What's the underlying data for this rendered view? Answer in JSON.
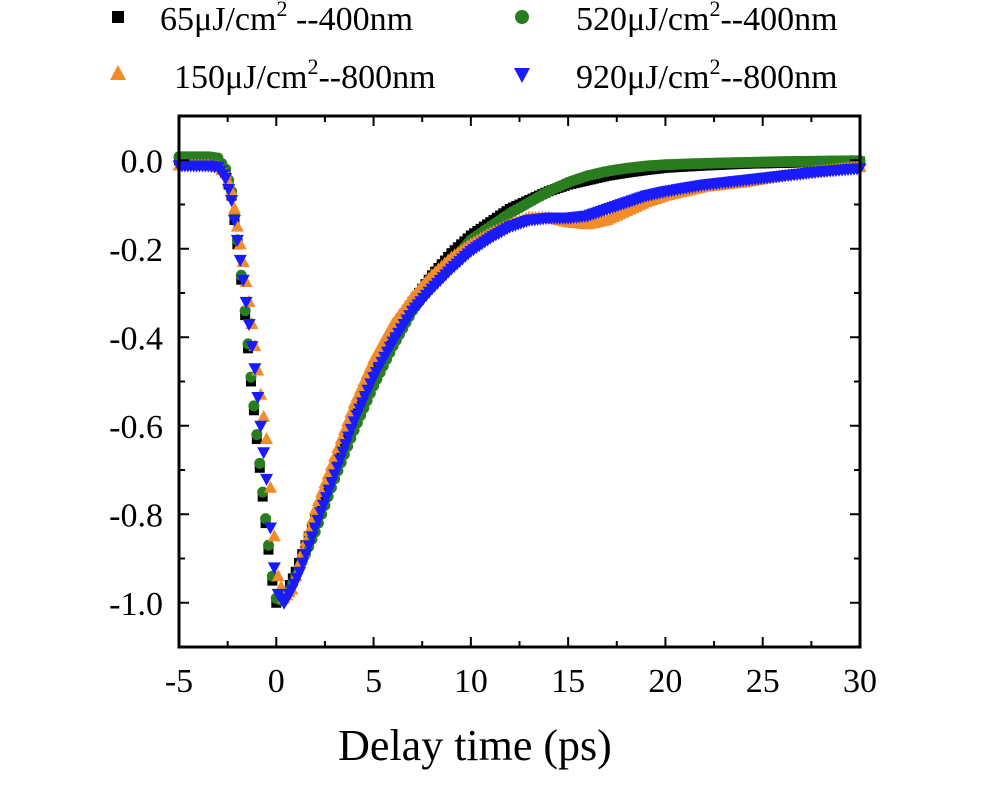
{
  "chart_data": {
    "type": "scatter",
    "xlabel": "Delay time (ps)",
    "ylabel": "",
    "xlim": [
      -5,
      30
    ],
    "ylim": [
      -1.1,
      0.1
    ],
    "xticks": [
      "-5",
      "0",
      "5",
      "10",
      "15",
      "20",
      "25",
      "30"
    ],
    "yticks": [
      "0.0",
      "-0.2",
      "-0.4",
      "-0.6",
      "-0.8",
      "-1.0"
    ],
    "grid": false,
    "legend_position": "top, outside plot, two columns",
    "series": [
      {
        "name": "65μJ/cm2 --400nm",
        "marker": "square",
        "color": "#000000",
        "points": [
          [
            -5,
            0.0
          ],
          [
            -3.5,
            0.0
          ],
          [
            -3,
            -0.005
          ],
          [
            -2.6,
            -0.03
          ],
          [
            -2.3,
            -0.08
          ],
          [
            -2,
            -0.19
          ],
          [
            -1.6,
            -0.35
          ],
          [
            -1.3,
            -0.5
          ],
          [
            -1,
            -0.63
          ],
          [
            -0.7,
            -0.76
          ],
          [
            -0.4,
            -0.88
          ],
          [
            -0.2,
            -0.95
          ],
          [
            0,
            -1.0
          ],
          [
            0.3,
            -0.99
          ],
          [
            0.7,
            -0.96
          ],
          [
            1,
            -0.93
          ],
          [
            2,
            -0.81
          ],
          [
            3,
            -0.69
          ],
          [
            4,
            -0.58
          ],
          [
            5,
            -0.48
          ],
          [
            6,
            -0.39
          ],
          [
            7,
            -0.32
          ],
          [
            8,
            -0.26
          ],
          [
            9,
            -0.21
          ],
          [
            10,
            -0.17
          ],
          [
            11,
            -0.14
          ],
          [
            12,
            -0.11
          ],
          [
            13,
            -0.09
          ],
          [
            14,
            -0.07
          ],
          [
            15,
            -0.055
          ],
          [
            16,
            -0.045
          ],
          [
            17,
            -0.035
          ],
          [
            18,
            -0.028
          ],
          [
            19,
            -0.022
          ],
          [
            20,
            -0.017
          ],
          [
            22,
            -0.012
          ],
          [
            24,
            -0.008
          ],
          [
            26,
            -0.006
          ],
          [
            28,
            -0.004
          ],
          [
            30,
            -0.003
          ]
        ]
      },
      {
        "name": "520μJ/cm2--400nm",
        "marker": "circle",
        "color": "#2a7d1f",
        "points": [
          [
            -5,
            0.008
          ],
          [
            -3.5,
            0.008
          ],
          [
            -3,
            0.005
          ],
          [
            -2.6,
            -0.02
          ],
          [
            -2.3,
            -0.07
          ],
          [
            -2,
            -0.18
          ],
          [
            -1.6,
            -0.34
          ],
          [
            -1.3,
            -0.49
          ],
          [
            -1,
            -0.62
          ],
          [
            -0.7,
            -0.75
          ],
          [
            -0.4,
            -0.87
          ],
          [
            -0.2,
            -0.94
          ],
          [
            0,
            -0.99
          ],
          [
            0.3,
            -0.995
          ],
          [
            0.7,
            -0.97
          ],
          [
            1,
            -0.94
          ],
          [
            2,
            -0.84
          ],
          [
            3,
            -0.72
          ],
          [
            4,
            -0.61
          ],
          [
            5,
            -0.51
          ],
          [
            6,
            -0.42
          ],
          [
            7,
            -0.34
          ],
          [
            8,
            -0.28
          ],
          [
            9,
            -0.23
          ],
          [
            10,
            -0.18
          ],
          [
            11,
            -0.15
          ],
          [
            12,
            -0.12
          ],
          [
            13,
            -0.095
          ],
          [
            14,
            -0.07
          ],
          [
            15,
            -0.05
          ],
          [
            16,
            -0.035
          ],
          [
            17,
            -0.025
          ],
          [
            18,
            -0.018
          ],
          [
            19,
            -0.013
          ],
          [
            20,
            -0.01
          ],
          [
            22,
            -0.007
          ],
          [
            24,
            -0.005
          ],
          [
            26,
            -0.003
          ],
          [
            28,
            -0.002
          ],
          [
            30,
            -0.001
          ]
        ]
      },
      {
        "name": "150μJ/cm2--800nm",
        "marker": "triangle-up",
        "color": "#f28c28",
        "points": [
          [
            -5,
            -0.012
          ],
          [
            -3.5,
            -0.012
          ],
          [
            -3,
            -0.015
          ],
          [
            -2.6,
            -0.03
          ],
          [
            -2.3,
            -0.07
          ],
          [
            -2,
            -0.15
          ],
          [
            -1.7,
            -0.23
          ],
          [
            -1.4,
            -0.32
          ],
          [
            -1.1,
            -0.42
          ],
          [
            -0.8,
            -0.53
          ],
          [
            -0.5,
            -0.63
          ],
          [
            -0.3,
            -0.74
          ],
          [
            -0.1,
            -0.85
          ],
          [
            0.1,
            -0.94
          ],
          [
            0.4,
            -0.99
          ],
          [
            0.8,
            -0.97
          ],
          [
            1.2,
            -0.91
          ],
          [
            2,
            -0.79
          ],
          [
            3,
            -0.67
          ],
          [
            4,
            -0.55
          ],
          [
            5,
            -0.45
          ],
          [
            6,
            -0.37
          ],
          [
            7,
            -0.31
          ],
          [
            8,
            -0.26
          ],
          [
            9,
            -0.22
          ],
          [
            10,
            -0.19
          ],
          [
            11,
            -0.165
          ],
          [
            12,
            -0.145
          ],
          [
            13,
            -0.13
          ],
          [
            14,
            -0.13
          ],
          [
            15,
            -0.14
          ],
          [
            16,
            -0.145
          ],
          [
            17,
            -0.135
          ],
          [
            18,
            -0.115
          ],
          [
            19,
            -0.095
          ],
          [
            20,
            -0.08
          ],
          [
            22,
            -0.06
          ],
          [
            24,
            -0.05
          ],
          [
            26,
            -0.035
          ],
          [
            28,
            -0.025
          ],
          [
            30,
            -0.015
          ]
        ]
      },
      {
        "name": "920μJ/cm2--800nm",
        "marker": "triangle-down",
        "color": "#1a1aff",
        "points": [
          [
            -5,
            -0.012
          ],
          [
            -3.5,
            -0.012
          ],
          [
            -3,
            -0.015
          ],
          [
            -2.6,
            -0.04
          ],
          [
            -2.3,
            -0.09
          ],
          [
            -2,
            -0.18
          ],
          [
            -1.7,
            -0.27
          ],
          [
            -1.4,
            -0.37
          ],
          [
            -1.1,
            -0.47
          ],
          [
            -0.8,
            -0.6
          ],
          [
            -0.5,
            -0.72
          ],
          [
            -0.3,
            -0.83
          ],
          [
            -0.1,
            -0.92
          ],
          [
            0.1,
            -0.98
          ],
          [
            0.4,
            -1.0
          ],
          [
            0.8,
            -0.97
          ],
          [
            1.2,
            -0.93
          ],
          [
            2,
            -0.83
          ],
          [
            3,
            -0.71
          ],
          [
            4,
            -0.59
          ],
          [
            5,
            -0.49
          ],
          [
            6,
            -0.41
          ],
          [
            7,
            -0.34
          ],
          [
            8,
            -0.29
          ],
          [
            9,
            -0.245
          ],
          [
            10,
            -0.205
          ],
          [
            11,
            -0.175
          ],
          [
            12,
            -0.15
          ],
          [
            13,
            -0.135
          ],
          [
            14,
            -0.13
          ],
          [
            15,
            -0.13
          ],
          [
            16,
            -0.125
          ],
          [
            17,
            -0.11
          ],
          [
            18,
            -0.095
          ],
          [
            19,
            -0.08
          ],
          [
            20,
            -0.07
          ],
          [
            22,
            -0.055
          ],
          [
            24,
            -0.045
          ],
          [
            26,
            -0.035
          ],
          [
            28,
            -0.025
          ],
          [
            30,
            -0.018
          ]
        ]
      }
    ]
  },
  "legend": [
    {
      "prefix": "65μJ/cm",
      "sup": "2",
      "suffix": " --400nm"
    },
    {
      "prefix": "520μJ/cm",
      "sup": "2",
      "suffix": "--400nm"
    },
    {
      "prefix": "150μJ/cm",
      "sup": "2",
      "suffix": "--800nm"
    },
    {
      "prefix": "920μJ/cm",
      "sup": "2",
      "suffix": "--800nm"
    }
  ]
}
